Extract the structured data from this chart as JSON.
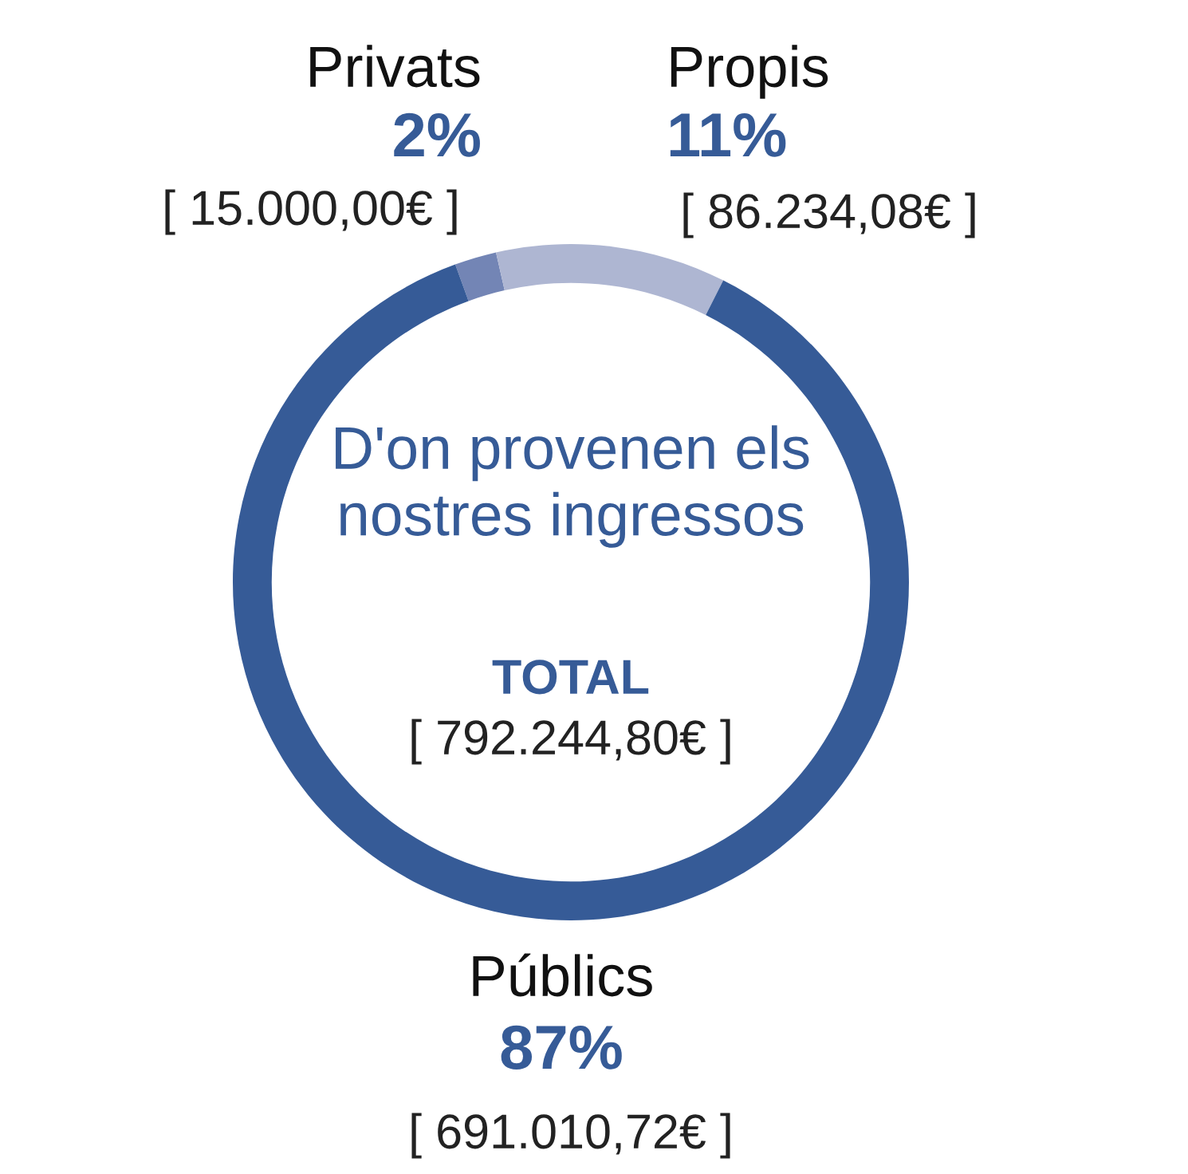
{
  "chart_data": {
    "type": "donut",
    "title": "D'on provenen els nostres ingressos",
    "categories": [
      "Privats",
      "Propis",
      "Públics"
    ],
    "values": [
      2,
      11,
      87
    ],
    "colors": [
      "#7385b5",
      "#aeb6d2",
      "#365b97"
    ],
    "value_labels": [
      "2%",
      "11%",
      "87%"
    ],
    "annotations": [
      "[ 15.000,00€ ]",
      "[ 86.234,08€ ]",
      "[ 691.010,72€ ]",
      "TOTAL",
      "[ 792.244,80€ ]"
    ],
    "legend": false
  }
}
